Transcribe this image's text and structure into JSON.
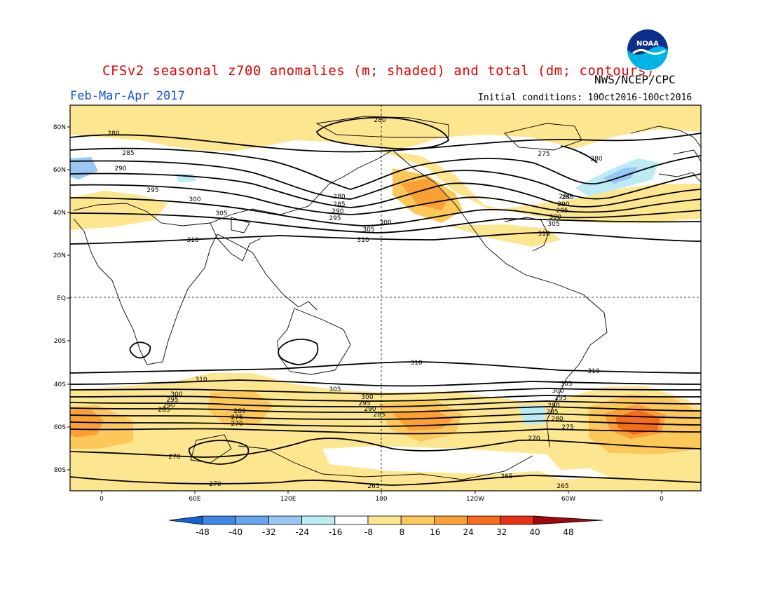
{
  "title": "CFSv2 seasonal z700 anomalies (m; shaded) and total (dm; contours)",
  "period": "Feb-Mar-Apr 2017",
  "agency": "NWS/NCEP/CPC",
  "initial_conditions": "Initial conditions: 10Oct2016-10Oct2016",
  "logo_text": "NOAA",
  "lat_labels": [
    "80N",
    "60N",
    "40N",
    "20N",
    "EQ",
    "20S",
    "40S",
    "60S",
    "80S"
  ],
  "lon_labels": [
    "0",
    "60E",
    "120E",
    "180",
    "120W",
    "60W",
    "0"
  ],
  "colorbar": {
    "ticks": [
      "-48",
      "-40",
      "-32",
      "-24",
      "-16",
      "-8",
      "8",
      "16",
      "24",
      "32",
      "40",
      "48"
    ],
    "colors": [
      "#1e6ed8",
      "#3f88e6",
      "#66a4ee",
      "#98c7f4",
      "#bcebf3",
      "#ffffff",
      "#fde690",
      "#fdc85a",
      "#fba035",
      "#f66c1d",
      "#e63214",
      "#b8100c"
    ],
    "end_low": "#1560d0",
    "end_high": "#a0080a"
  },
  "contour_labels": {
    "n280a": "280",
    "n285": "285",
    "n290": "290",
    "n295": "295",
    "n300": "300",
    "n305": "305",
    "n310": "310",
    "n280b": "280",
    "n275": "275",
    "n280c": "280",
    "p280": "280",
    "p285": "285",
    "p290": "290",
    "p295": "295",
    "p300": "300",
    "p305": "305",
    "p310": "310",
    "q280": "280",
    "q285": "285",
    "q290": "290",
    "q295": "295",
    "q300": "300",
    "q305": "305",
    "q310": "310",
    "s310a": "310",
    "s310b": "310",
    "s310c": "310",
    "s305a": "305",
    "s300a": "300",
    "s295a": "295",
    "s290a": "290",
    "s285a": "285",
    "s300b": "300",
    "s295b": "295",
    "s290b": "290",
    "s285b": "285",
    "s280a": "280",
    "s275a": "275",
    "s270a": "270",
    "s300c": "300",
    "s295c": "295",
    "s290c": "290",
    "s285c": "285",
    "s305b": "305",
    "s300d": "300",
    "s295d": "295",
    "s290d": "290",
    "s285d": "285",
    "s280b": "280",
    "s275b": "275",
    "s270b": "270",
    "s270c": "270",
    "s270d": "270",
    "s265a": "265",
    "s265b": "265",
    "s265c": "265"
  }
}
